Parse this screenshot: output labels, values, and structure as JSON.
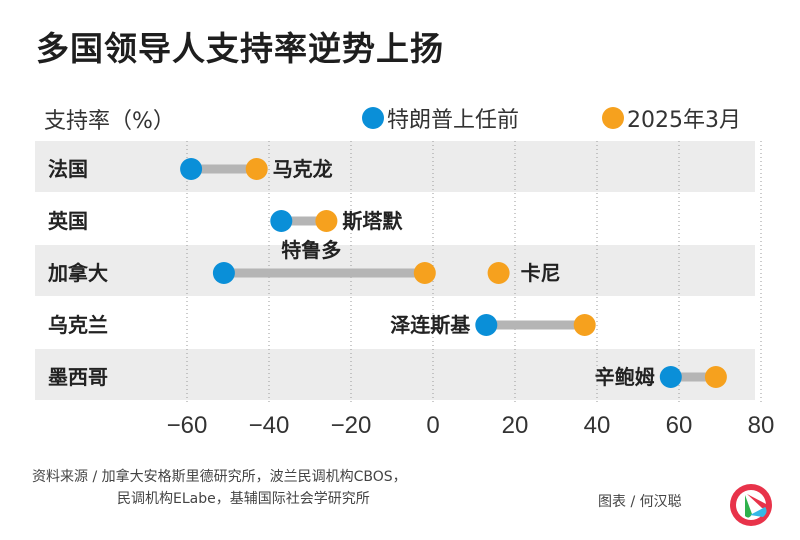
{
  "header": {
    "title": "多国领导人支持率逆势上扬"
  },
  "colors": {
    "before": "#0a8fd8",
    "after": "#f6a11e",
    "connector": "#b5b5b5",
    "band": "#ececec",
    "grid": "#9a9a9a"
  },
  "chart_data": {
    "type": "dumbbell",
    "title": "多国领导人支持率逆势上扬",
    "ylabel": "支持率（%）",
    "xlabel": "",
    "xlim": [
      -60,
      80
    ],
    "xticks": [
      -60,
      -40,
      -20,
      0,
      20,
      40,
      60,
      80
    ],
    "xtick_labels": [
      "−60",
      "−40",
      "−20",
      "0",
      "20",
      "40",
      "60",
      "80"
    ],
    "grid": "vertical-dotted",
    "legend": {
      "placement": "top-right",
      "entries": [
        {
          "key": "before",
          "label": "特朗普上任前"
        },
        {
          "key": "after",
          "label": "2025年3月"
        }
      ]
    },
    "rows": [
      {
        "country": "法国",
        "leader": "马克龙",
        "before": -59,
        "after": -43,
        "banded": true
      },
      {
        "country": "英国",
        "leader": "斯塔默",
        "before": -37,
        "after": -26,
        "banded": false
      },
      {
        "country": "加拿大",
        "leader": "特鲁多",
        "before": -51,
        "after": -2,
        "banded": true,
        "extra": {
          "leader": "卡尼",
          "after": 16
        }
      },
      {
        "country": "乌克兰",
        "leader": "泽连斯基",
        "before": 13,
        "after": 37,
        "banded": false
      },
      {
        "country": "墨西哥",
        "leader": "辛鲍姆",
        "before": 58,
        "after": 69,
        "banded": true
      }
    ]
  },
  "footer": {
    "source_line1": "资料来源 / 加拿大安格斯里德研究所，波兰民调机构CBOS，",
    "source_line2": "民调机构ELabe，基辅国际社会学研究所",
    "credit": "图表 / 何汉聪",
    "logo_icon": "media-logo-icon"
  }
}
